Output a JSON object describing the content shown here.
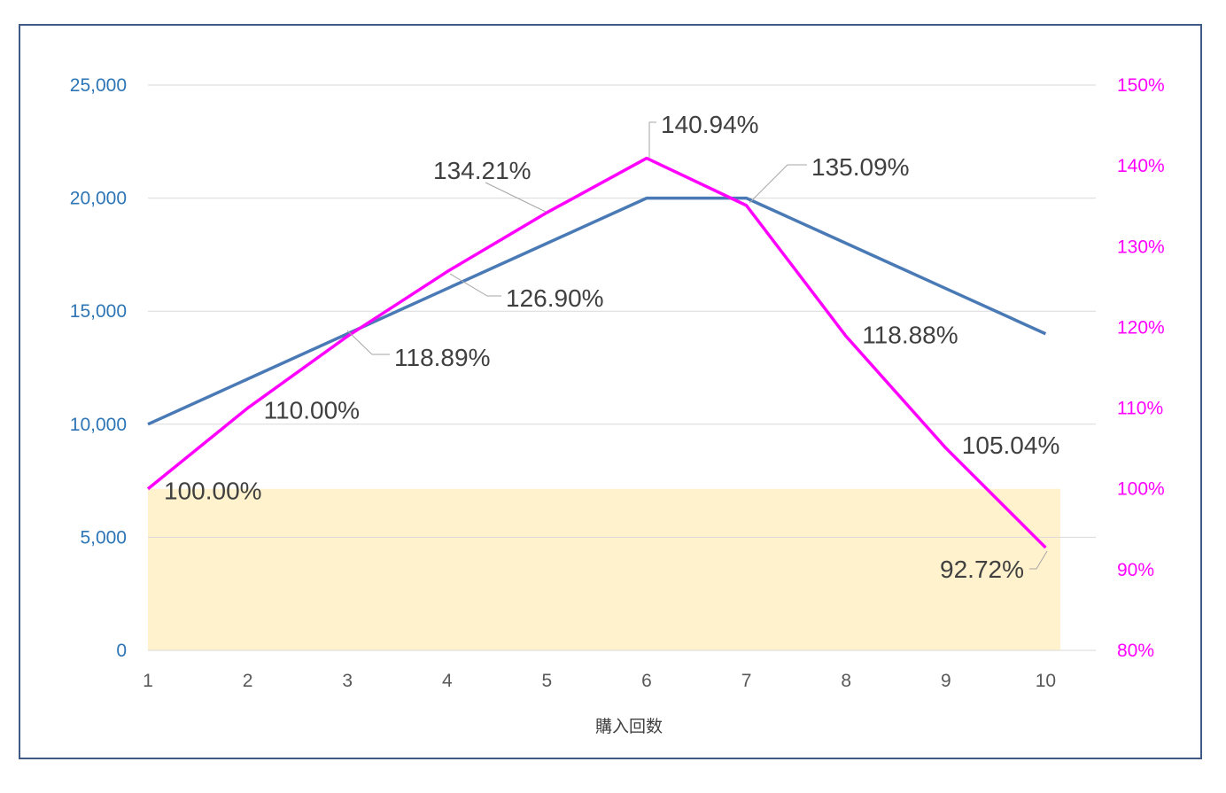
{
  "chart_data": {
    "type": "line",
    "xlabel": "購入回数",
    "categories": [
      "1",
      "2",
      "3",
      "4",
      "5",
      "6",
      "7",
      "8",
      "9",
      "10"
    ],
    "y_left": {
      "ylim": [
        0,
        25000
      ],
      "ticks": [
        "0",
        "5,000",
        "10,000",
        "15,000",
        "20,000",
        "25,000"
      ],
      "color": "#2e75b6"
    },
    "y_right": {
      "ylim": [
        0.8,
        1.5
      ],
      "ticks": [
        "80%",
        "90%",
        "100%",
        "110%",
        "120%",
        "130%",
        "140%",
        "150%"
      ],
      "color": "#ff00ff"
    },
    "series": [
      {
        "axis": "left",
        "color": "#4a7ab5",
        "values": [
          10000,
          12000,
          14000,
          16000,
          18000,
          20000,
          20000,
          18000,
          16000,
          14000
        ]
      },
      {
        "axis": "right",
        "color": "#ff00ff",
        "values": [
          1.0,
          1.1,
          1.1889,
          1.269,
          1.3421,
          1.4094,
          1.3509,
          1.1888,
          1.0504,
          0.9272
        ],
        "labels": [
          "100.00%",
          "110.00%",
          "118.89%",
          "126.90%",
          "134.21%",
          "140.94%",
          "135.09%",
          "118.88%",
          "105.04%",
          "92.72%"
        ]
      }
    ],
    "band": {
      "from": 0,
      "to": 1.0,
      "axis": "right",
      "color": "#fff2cc"
    },
    "grid": true
  }
}
